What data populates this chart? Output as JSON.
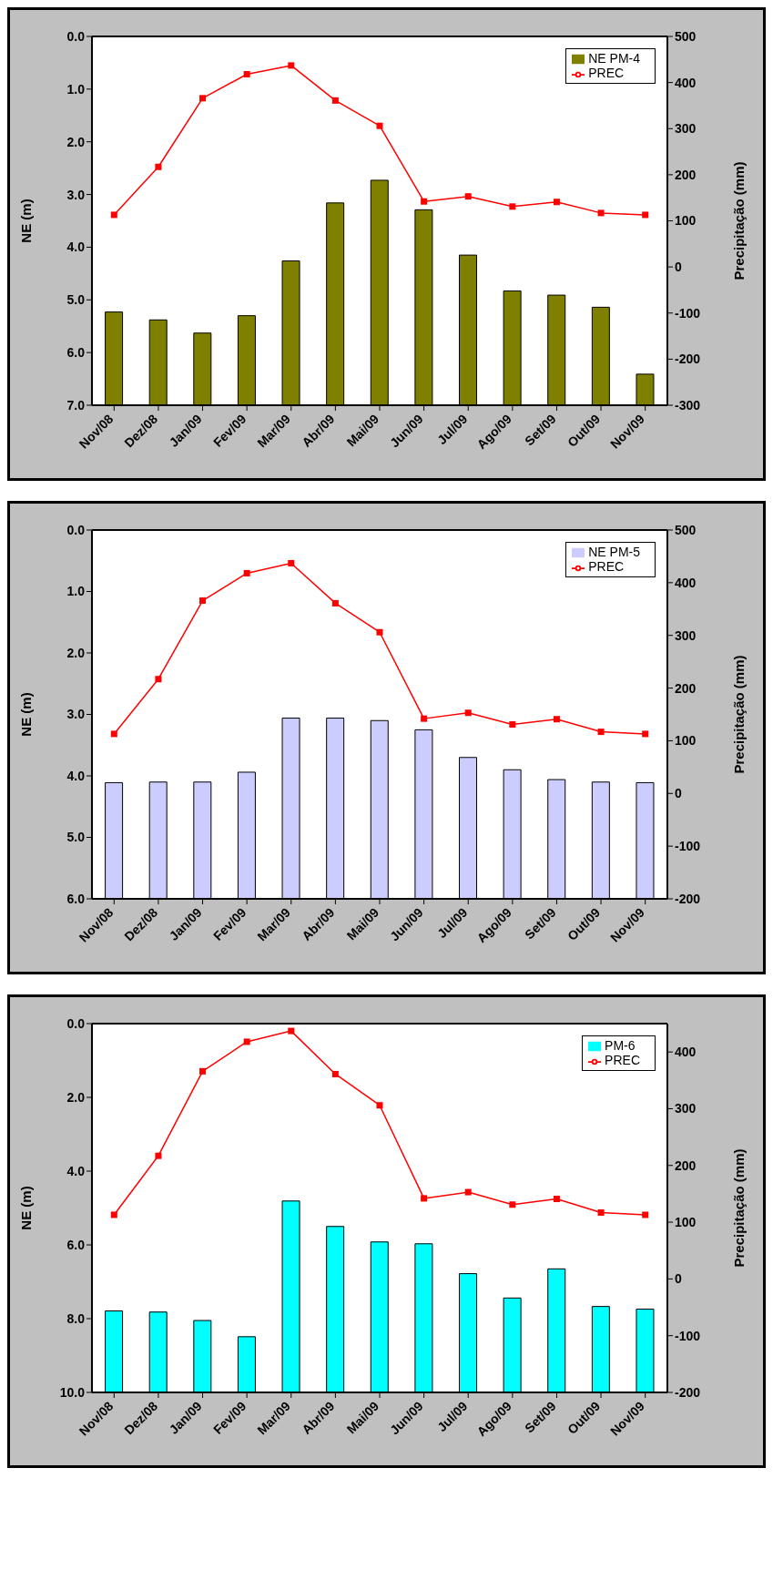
{
  "chart_data": [
    {
      "type": "bar",
      "categories": [
        "Nov/08",
        "Dez/08",
        "Jan/09",
        "Fev/09",
        "Mar/09",
        "Abr/09",
        "Mai/09",
        "Jun/09",
        "Jul/09",
        "Ago/09",
        "Set/09",
        "Out/09",
        "Nov/09"
      ],
      "series": [
        {
          "name": "NE PM-4",
          "color": "#808000",
          "base": [
            7,
            7,
            7,
            7,
            7,
            7,
            7,
            7,
            7,
            7,
            7,
            7,
            7
          ],
          "values": [
            -1.77,
            -1.62,
            -1.37,
            -1.7,
            -2.74,
            -3.84,
            -4.27,
            -3.71,
            -2.85,
            -2.17,
            -2.09,
            -1.86,
            -0.59
          ]
        },
        {
          "name": "PREC",
          "type": "line",
          "axis": "y2",
          "color": "#ff0000",
          "values": [
            113,
            217,
            366,
            418,
            437,
            361,
            306,
            142,
            153,
            131,
            141,
            117,
            113
          ]
        }
      ],
      "ylabel": "NE (m)",
      "y2label": "Precipitação (mm)",
      "ylim": [
        7,
        0
      ],
      "yticks": [
        {
          "value": 0,
          "label": "0.0"
        },
        {
          "value": 1,
          "label": "1.0"
        },
        {
          "value": 2,
          "label": "2.0"
        },
        {
          "value": 3,
          "label": "3.0"
        },
        {
          "value": 4,
          "label": "4.0"
        },
        {
          "value": 5,
          "label": "5.0"
        },
        {
          "value": 6,
          "label": "6.0"
        },
        {
          "value": 7,
          "label": "7.0"
        }
      ],
      "y2lim": [
        -300,
        500
      ],
      "y2ticks": [
        -300,
        -200,
        -100,
        0,
        100,
        200,
        300,
        400,
        500
      ],
      "legend": "top right",
      "marker": "square",
      "grid": false
    },
    {
      "type": "bar",
      "categories": [
        "Nov/08",
        "Dez/08",
        "Jan/09",
        "Fev/09",
        "Mar/09",
        "Abr/09",
        "Mai/09",
        "Jun/09",
        "Jul/09",
        "Ago/09",
        "Set/09",
        "Out/09",
        "Nov/09"
      ],
      "series": [
        {
          "name": "NE PM-5",
          "color": "#ccccff",
          "base": [
            6,
            6,
            6,
            6,
            6,
            6,
            6,
            6,
            6,
            6,
            6,
            6,
            6
          ],
          "values": [
            -1.89,
            -1.9,
            -1.9,
            -2.06,
            -2.94,
            -2.94,
            -2.9,
            -2.75,
            -2.3,
            -2.1,
            -1.94,
            -1.9,
            -1.89
          ]
        },
        {
          "name": "PREC",
          "type": "line",
          "axis": "y2",
          "color": "#ff0000",
          "values": [
            113,
            217,
            366,
            418,
            437,
            361,
            306,
            142,
            153,
            131,
            141,
            117,
            113
          ]
        }
      ],
      "ylabel": "NE (m)",
      "y2label": "Precipitação (mm)",
      "ylim": [
        6,
        0
      ],
      "yticks": [
        {
          "value": 0,
          "label": "0.0"
        },
        {
          "value": 1,
          "label": "1.0"
        },
        {
          "value": 2,
          "label": "2.0"
        },
        {
          "value": 3,
          "label": "3.0"
        },
        {
          "value": 4,
          "label": "4.0"
        },
        {
          "value": 5,
          "label": "5.0"
        },
        {
          "value": 6,
          "label": "6.0"
        }
      ],
      "y2lim": [
        -200,
        500
      ],
      "y2ticks": [
        -200,
        -100,
        0,
        100,
        200,
        300,
        400,
        500
      ],
      "legend": "top right",
      "marker": "square",
      "grid": false
    },
    {
      "type": "bar",
      "categories": [
        "Nov/08",
        "Dez/08",
        "Jan/09",
        "Fev/09",
        "Mar/09",
        "Abr/09",
        "Mai/09",
        "Jun/09",
        "Jul/09",
        "Ago/09",
        "Set/09",
        "Out/09",
        "Nov/09"
      ],
      "series": [
        {
          "name": "PM-6",
          "color": "#00ffff",
          "base": [
            10,
            10,
            10,
            10,
            10,
            10,
            10,
            10,
            10,
            10,
            10,
            10,
            10
          ],
          "values": [
            -2.21,
            -2.18,
            -1.95,
            -1.51,
            -5.19,
            -4.5,
            -4.08,
            -4.03,
            -3.22,
            -2.56,
            -3.35,
            -2.33,
            -2.26
          ]
        },
        {
          "name": "PREC",
          "type": "line",
          "axis": "y2",
          "color": "#ff0000",
          "values": [
            113,
            217,
            366,
            418,
            437,
            361,
            306,
            142,
            153,
            131,
            141,
            117,
            113
          ]
        }
      ],
      "ylabel": "NE (m)",
      "y2label": "Precipitação (mm)",
      "ylim": [
        10,
        0
      ],
      "yticks": [
        {
          "value": 0,
          "label": "0.0"
        },
        {
          "value": 2,
          "label": "2.0"
        },
        {
          "value": 4,
          "label": "4.0"
        },
        {
          "value": 6,
          "label": "6.0"
        },
        {
          "value": 8,
          "label": "8.0"
        },
        {
          "value": 10,
          "label": "10.0"
        }
      ],
      "y2lim": [
        -200,
        450
      ],
      "y2ticks": [
        -200,
        -100,
        0,
        100,
        200,
        300,
        400
      ],
      "legend": "top right",
      "marker": "square",
      "grid": false
    }
  ]
}
